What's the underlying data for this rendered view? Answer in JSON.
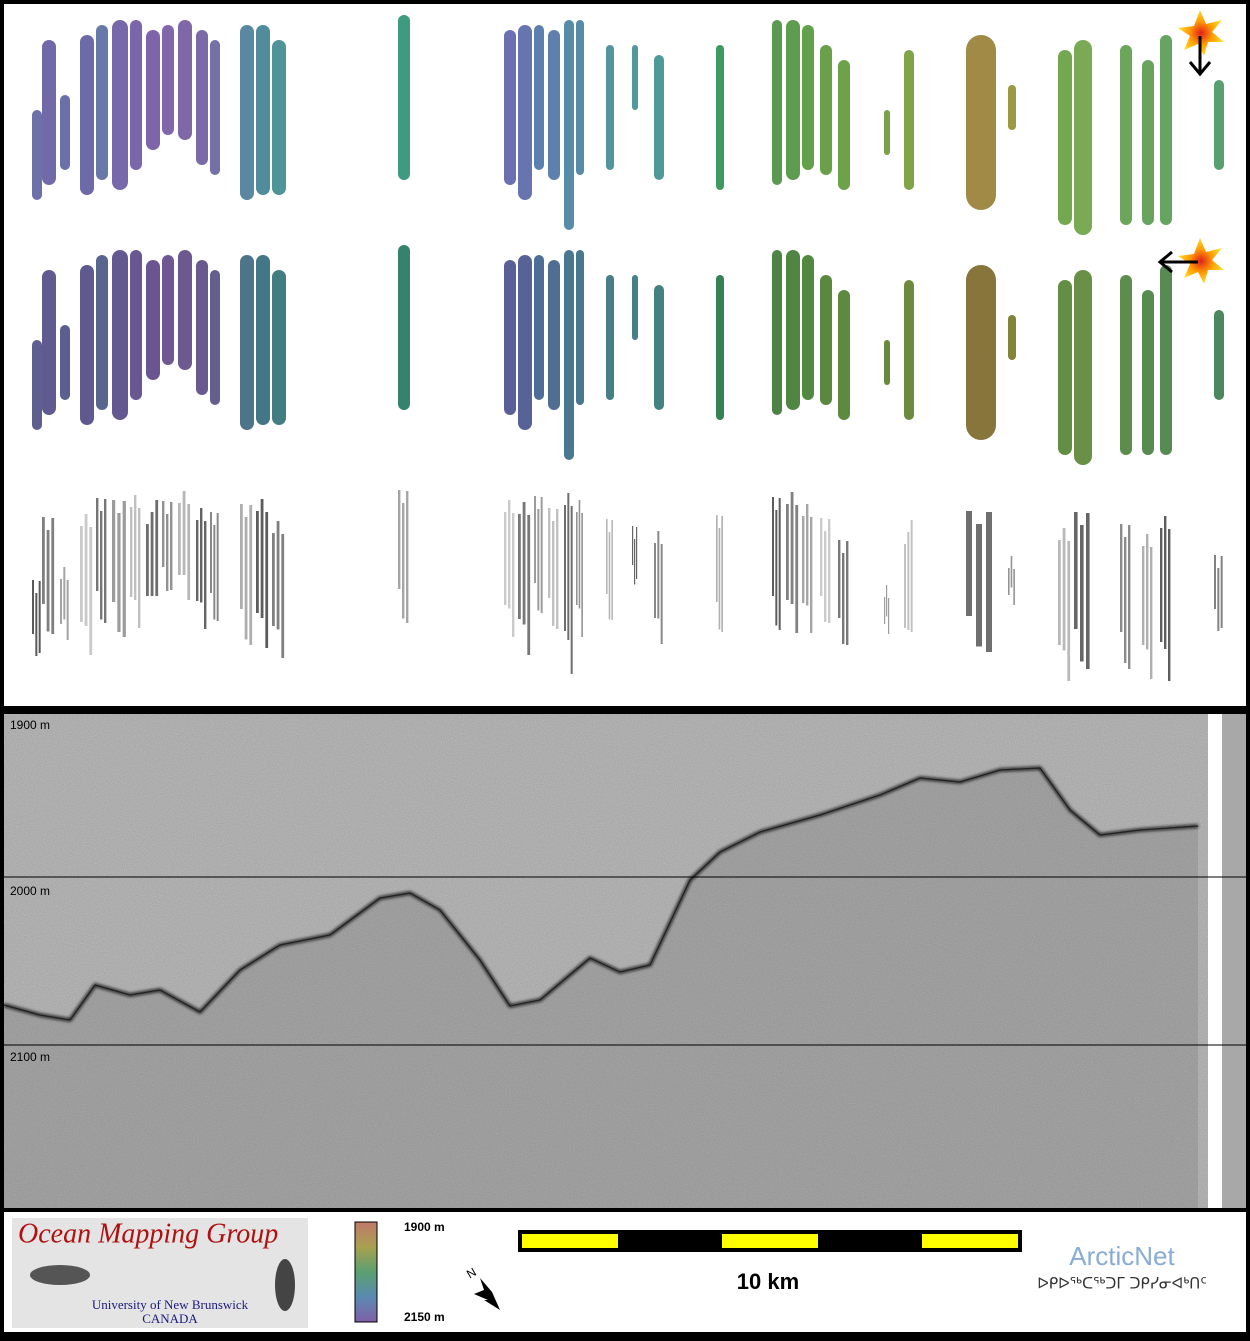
{
  "profile": {
    "depth_labels": [
      "1900 m",
      "2000 m",
      "2100 m"
    ]
  },
  "footer": {
    "logo": {
      "title": "Ocean Mapping Group",
      "university": "University of New Brunswick",
      "country": "CANADA"
    },
    "colorbar": {
      "top_label": "1900 m",
      "bottom_label": "2150 m"
    },
    "compass": "N",
    "scale_bar": "10 km",
    "partner": {
      "name": "ArcticNet",
      "syllabics": "ᐅᑭᐅᖅᑕᖅᑐᒥ ᑐᑭᓯᓂᐊᒃᑎᑦ"
    }
  }
}
